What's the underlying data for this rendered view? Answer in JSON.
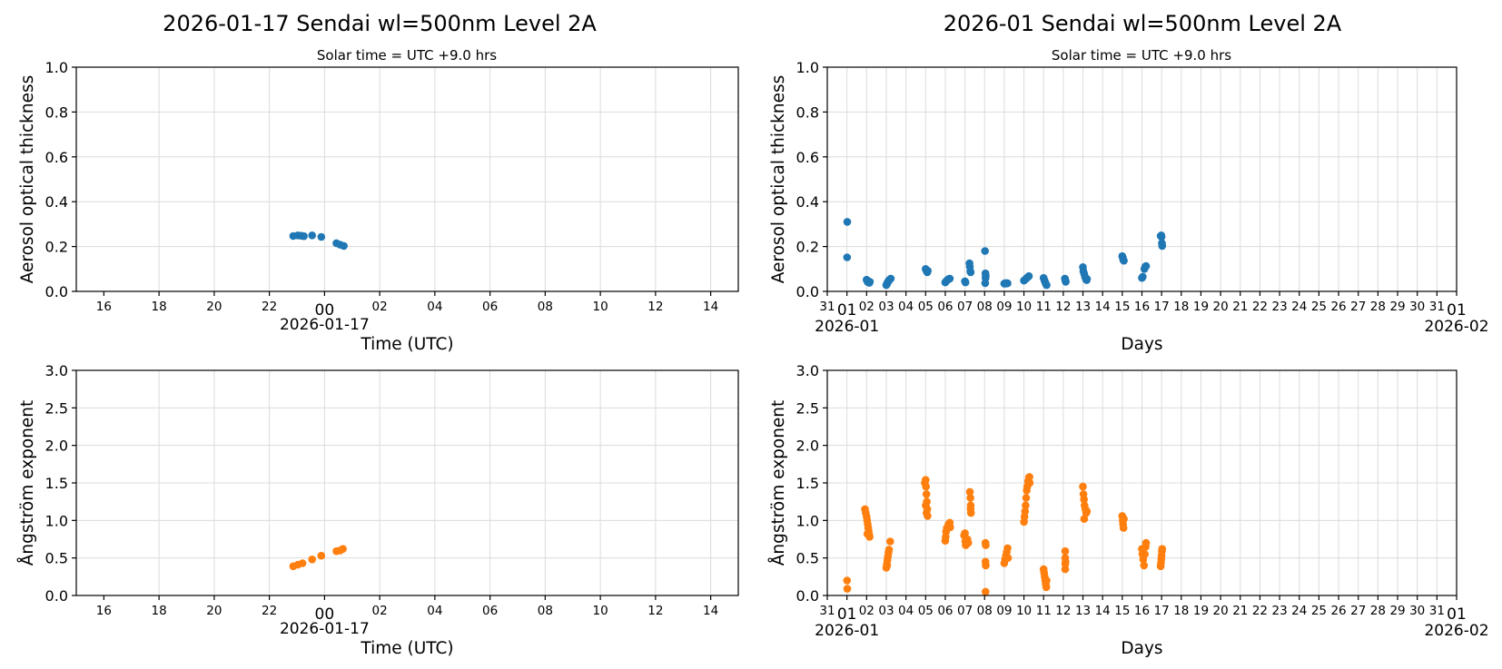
{
  "colors": {
    "aod": "#1f77b4",
    "angstrom": "#ff7f0e",
    "grid": "#dcdcdc"
  },
  "chart_data": [
    {
      "type": "scatter",
      "panel": "daily-aod",
      "title": "2026-01-17  Sendai  wl=500nm  Level 2A",
      "subtitle": "Solar time = UTC +9.0 hrs",
      "xlabel": "Time (UTC)",
      "ylabel": "Aerosol optical thickness",
      "xlim": [
        "2026-01-16T15:00",
        "2026-01-17T15:00"
      ],
      "ylim": [
        0,
        1.0
      ],
      "yticks": [
        "0.0",
        "0.2",
        "0.4",
        "0.6",
        "0.8",
        "1.0"
      ],
      "xticks": [
        "16",
        "18",
        "20",
        "22",
        "00",
        "02",
        "04",
        "06",
        "08",
        "10",
        "12",
        "14"
      ],
      "x_date_label": "2026-01-17",
      "grid": true,
      "points": [
        [
          "2026-01-16T22:52",
          0.247
        ],
        [
          "2026-01-16T23:02",
          0.25
        ],
        [
          "2026-01-16T23:09",
          0.248
        ],
        [
          "2026-01-16T23:15",
          0.246
        ],
        [
          "2026-01-16T23:33",
          0.25
        ],
        [
          "2026-01-16T23:53",
          0.243
        ],
        [
          "2026-01-17T00:26",
          0.215
        ],
        [
          "2026-01-17T00:34",
          0.208
        ],
        [
          "2026-01-17T00:42",
          0.203
        ]
      ]
    },
    {
      "type": "scatter",
      "panel": "monthly-aod",
      "title": "2026-01  Sendai  wl=500nm  Level 2A",
      "subtitle": "Solar time = UTC +9.0 hrs",
      "xlabel": "Days",
      "ylabel": "Aerosol optical thickness",
      "xlim": [
        "2025-12-31",
        "2026-02-01"
      ],
      "ylim": [
        0,
        1.0
      ],
      "yticks": [
        "0.0",
        "0.2",
        "0.4",
        "0.6",
        "0.8",
        "1.0"
      ],
      "xticks": [
        "31",
        "01",
        "02",
        "03",
        "04",
        "05",
        "06",
        "07",
        "08",
        "09",
        "10",
        "11",
        "12",
        "13",
        "14",
        "15",
        "16",
        "17",
        "18",
        "19",
        "20",
        "21",
        "22",
        "23",
        "24",
        "25",
        "26",
        "27",
        "28",
        "29",
        "30",
        "31",
        "01"
      ],
      "x_date_labels": [
        "2026-01",
        "2026-02"
      ],
      "grid": true,
      "points": [
        [
          "2026-01-01T00:20",
          0.31
        ],
        [
          "2026-01-01T00:10",
          0.152
        ],
        [
          "2026-01-02T00:00",
          0.052
        ],
        [
          "2026-01-02T00:40",
          0.048
        ],
        [
          "2026-01-02T01:20",
          0.042
        ],
        [
          "2026-01-02T02:00",
          0.045
        ],
        [
          "2026-01-02T02:40",
          0.04
        ],
        [
          "2026-01-02T03:20",
          0.038
        ],
        [
          "2026-01-02T04:00",
          0.043
        ],
        [
          "2026-01-03T00:00",
          0.028
        ],
        [
          "2026-01-03T00:40",
          0.032
        ],
        [
          "2026-01-03T01:20",
          0.038
        ],
        [
          "2026-01-03T02:00",
          0.042
        ],
        [
          "2026-01-03T03:00",
          0.048
        ],
        [
          "2026-01-03T04:00",
          0.052
        ],
        [
          "2026-01-03T05:30",
          0.057
        ],
        [
          "2026-01-05T00:00",
          0.1
        ],
        [
          "2026-01-05T00:40",
          0.095
        ],
        [
          "2026-01-05T01:20",
          0.09
        ],
        [
          "2026-01-05T02:00",
          0.085
        ],
        [
          "2026-01-05T02:40",
          0.092
        ],
        [
          "2026-01-06T00:00",
          0.04
        ],
        [
          "2026-01-06T01:00",
          0.045
        ],
        [
          "2026-01-06T02:30",
          0.05
        ],
        [
          "2026-01-06T04:00",
          0.055
        ],
        [
          "2026-01-06T05:30",
          0.057
        ],
        [
          "2026-01-07T00:00",
          0.045
        ],
        [
          "2026-01-07T00:40",
          0.04
        ],
        [
          "2026-01-07T05:30",
          0.125
        ],
        [
          "2026-01-07T06:00",
          0.11
        ],
        [
          "2026-01-07T06:30",
          0.09
        ],
        [
          "2026-01-07T07:00",
          0.085
        ],
        [
          "2026-01-08T00:30",
          0.18
        ],
        [
          "2026-01-08T01:00",
          0.08
        ],
        [
          "2026-01-08T01:20",
          0.07
        ],
        [
          "2026-01-08T01:10",
          0.06
        ],
        [
          "2026-01-08T00:40",
          0.037
        ],
        [
          "2026-01-09T00:00",
          0.035
        ],
        [
          "2026-01-09T01:00",
          0.037
        ],
        [
          "2026-01-09T02:00",
          0.035
        ],
        [
          "2026-01-09T03:00",
          0.037
        ],
        [
          "2026-01-09T04:00",
          0.036
        ],
        [
          "2026-01-10T00:00",
          0.048
        ],
        [
          "2026-01-10T01:30",
          0.053
        ],
        [
          "2026-01-10T03:00",
          0.058
        ],
        [
          "2026-01-10T04:30",
          0.063
        ],
        [
          "2026-01-10T06:00",
          0.068
        ],
        [
          "2026-01-11T00:00",
          0.06
        ],
        [
          "2026-01-11T01:00",
          0.05
        ],
        [
          "2026-01-11T02:00",
          0.04
        ],
        [
          "2026-01-11T03:00",
          0.032
        ],
        [
          "2026-01-11T03:40",
          0.028
        ],
        [
          "2026-01-12T02:00",
          0.057
        ],
        [
          "2026-01-12T02:30",
          0.05
        ],
        [
          "2026-01-12T03:00",
          0.043
        ],
        [
          "2026-01-13T00:00",
          0.108
        ],
        [
          "2026-01-13T00:30",
          0.09
        ],
        [
          "2026-01-13T01:30",
          0.078
        ],
        [
          "2026-01-13T02:30",
          0.065
        ],
        [
          "2026-01-13T03:30",
          0.055
        ],
        [
          "2026-01-13T04:30",
          0.05
        ],
        [
          "2026-01-13T05:00",
          0.055
        ],
        [
          "2026-01-15T00:00",
          0.157
        ],
        [
          "2026-01-15T00:40",
          0.15
        ],
        [
          "2026-01-15T01:20",
          0.14
        ],
        [
          "2026-01-15T02:00",
          0.137
        ],
        [
          "2026-01-16T00:00",
          0.06
        ],
        [
          "2026-01-16T01:00",
          0.065
        ],
        [
          "2026-01-16T03:00",
          0.1
        ],
        [
          "2026-01-16T04:00",
          0.11
        ],
        [
          "2026-01-16T05:00",
          0.113
        ],
        [
          "2026-01-16T22:52",
          0.247
        ],
        [
          "2026-01-16T23:33",
          0.25
        ],
        [
          "2026-01-16T23:53",
          0.243
        ],
        [
          "2026-01-17T00:26",
          0.215
        ],
        [
          "2026-01-17T00:42",
          0.203
        ]
      ]
    },
    {
      "type": "scatter",
      "panel": "daily-angstrom",
      "xlabel": "Time (UTC)",
      "ylabel": "Ångström exponent",
      "xlim": [
        "2026-01-16T15:00",
        "2026-01-17T15:00"
      ],
      "ylim": [
        0,
        3.0
      ],
      "yticks": [
        "0.0",
        "0.5",
        "1.0",
        "1.5",
        "2.0",
        "2.5",
        "3.0"
      ],
      "xticks": [
        "16",
        "18",
        "20",
        "22",
        "00",
        "02",
        "04",
        "06",
        "08",
        "10",
        "12",
        "14"
      ],
      "x_date_label": "2026-01-17",
      "grid": true,
      "points": [
        [
          "2026-01-16T22:52",
          0.39
        ],
        [
          "2026-01-16T23:02",
          0.41
        ],
        [
          "2026-01-16T23:12",
          0.43
        ],
        [
          "2026-01-16T23:33",
          0.48
        ],
        [
          "2026-01-16T23:53",
          0.53
        ],
        [
          "2026-01-17T00:26",
          0.59
        ],
        [
          "2026-01-17T00:34",
          0.6
        ],
        [
          "2026-01-17T00:40",
          0.62
        ]
      ]
    },
    {
      "type": "scatter",
      "panel": "monthly-angstrom",
      "xlabel": "Days",
      "ylabel": "Ångström exponent",
      "xlim": [
        "2025-12-31",
        "2026-02-01"
      ],
      "ylim": [
        0,
        3.0
      ],
      "yticks": [
        "0.0",
        "0.5",
        "1.0",
        "1.5",
        "2.0",
        "2.5",
        "3.0"
      ],
      "xticks": [
        "31",
        "01",
        "02",
        "03",
        "04",
        "05",
        "06",
        "07",
        "08",
        "09",
        "10",
        "11",
        "12",
        "13",
        "14",
        "15",
        "16",
        "17",
        "18",
        "19",
        "20",
        "21",
        "22",
        "23",
        "24",
        "25",
        "26",
        "27",
        "28",
        "29",
        "30",
        "31",
        "01"
      ],
      "x_date_labels": [
        "2026-01",
        "2026-02"
      ],
      "grid": true,
      "points": [
        [
          "2026-01-01T00:10",
          0.2
        ],
        [
          "2026-01-01T00:20",
          0.09
        ],
        [
          "2026-01-01T22:00",
          1.15
        ],
        [
          "2026-01-01T23:00",
          1.1
        ],
        [
          "2026-01-02T00:00",
          1.05
        ],
        [
          "2026-01-02T00:40",
          1.0
        ],
        [
          "2026-01-02T01:20",
          0.95
        ],
        [
          "2026-01-02T02:00",
          0.9
        ],
        [
          "2026-01-02T02:40",
          0.85
        ],
        [
          "2026-01-02T03:20",
          0.8
        ],
        [
          "2026-01-02T03:40",
          0.78
        ],
        [
          "2026-01-02T01:00",
          0.82
        ],
        [
          "2026-01-03T00:00",
          0.37
        ],
        [
          "2026-01-03T00:40",
          0.42
        ],
        [
          "2026-01-03T01:20",
          0.47
        ],
        [
          "2026-01-03T02:00",
          0.52
        ],
        [
          "2026-01-03T02:40",
          0.57
        ],
        [
          "2026-01-03T03:20",
          0.61
        ],
        [
          "2026-01-03T04:48",
          0.72
        ],
        [
          "2026-01-03T01:00",
          0.4
        ],
        [
          "2026-01-04T23:00",
          1.5
        ],
        [
          "2026-01-05T00:00",
          1.54
        ],
        [
          "2026-01-05T00:30",
          1.45
        ],
        [
          "2026-01-05T01:00",
          1.35
        ],
        [
          "2026-01-05T01:30",
          1.25
        ],
        [
          "2026-01-05T02:00",
          1.15
        ],
        [
          "2026-01-05T02:20",
          1.06
        ],
        [
          "2026-01-05T00:10",
          1.2
        ],
        [
          "2026-01-05T01:10",
          1.1
        ],
        [
          "2026-01-06T00:00",
          0.73
        ],
        [
          "2026-01-06T00:30",
          0.78
        ],
        [
          "2026-01-06T01:00",
          0.85
        ],
        [
          "2026-01-06T02:00",
          0.9
        ],
        [
          "2026-01-06T04:00",
          0.95
        ],
        [
          "2026-01-06T05:30",
          0.97
        ],
        [
          "2026-01-06T06:00",
          0.91
        ],
        [
          "2026-01-06T23:00",
          0.8
        ],
        [
          "2026-01-07T00:00",
          0.83
        ],
        [
          "2026-01-07T00:30",
          0.72
        ],
        [
          "2026-01-07T01:00",
          0.67
        ],
        [
          "2026-01-07T03:00",
          0.75
        ],
        [
          "2026-01-07T04:00",
          0.7
        ],
        [
          "2026-01-07T06:00",
          1.38
        ],
        [
          "2026-01-07T06:40",
          1.3
        ],
        [
          "2026-01-07T07:00",
          1.2
        ],
        [
          "2026-01-07T07:20",
          1.1
        ],
        [
          "2026-01-07T06:50",
          1.15
        ],
        [
          "2026-01-08T01:00",
          0.7
        ],
        [
          "2026-01-08T01:20",
          0.67
        ],
        [
          "2026-01-08T01:00",
          0.45
        ],
        [
          "2026-01-08T01:20",
          0.4
        ],
        [
          "2026-01-08T01:10",
          0.05
        ],
        [
          "2026-01-09T00:00",
          0.43
        ],
        [
          "2026-01-09T01:00",
          0.48
        ],
        [
          "2026-01-09T02:00",
          0.53
        ],
        [
          "2026-01-09T03:00",
          0.58
        ],
        [
          "2026-01-09T04:00",
          0.63
        ],
        [
          "2026-01-09T04:30",
          0.5
        ],
        [
          "2026-01-10T00:00",
          0.98
        ],
        [
          "2026-01-10T00:40",
          1.05
        ],
        [
          "2026-01-10T01:20",
          1.12
        ],
        [
          "2026-01-10T02:00",
          1.2
        ],
        [
          "2026-01-10T02:40",
          1.3
        ],
        [
          "2026-01-10T03:20",
          1.4
        ],
        [
          "2026-01-10T04:00",
          1.45
        ],
        [
          "2026-01-10T05:00",
          1.52
        ],
        [
          "2026-01-10T06:00",
          1.57
        ],
        [
          "2026-01-10T06:40",
          1.58
        ],
        [
          "2026-01-10T07:00",
          1.5
        ],
        [
          "2026-01-11T00:00",
          0.35
        ],
        [
          "2026-01-11T00:40",
          0.3
        ],
        [
          "2026-01-11T01:20",
          0.25
        ],
        [
          "2026-01-11T02:00",
          0.2
        ],
        [
          "2026-01-11T02:40",
          0.15
        ],
        [
          "2026-01-11T03:20",
          0.11
        ],
        [
          "2026-01-11T03:40",
          0.2
        ],
        [
          "2026-01-12T02:24",
          0.59
        ],
        [
          "2026-01-12T02:20",
          0.5
        ],
        [
          "2026-01-12T02:30",
          0.42
        ],
        [
          "2026-01-12T02:24",
          0.35
        ],
        [
          "2026-01-12T02:40",
          0.45
        ],
        [
          "2026-01-13T00:00",
          1.45
        ],
        [
          "2026-01-13T00:40",
          1.35
        ],
        [
          "2026-01-13T01:20",
          1.28
        ],
        [
          "2026-01-13T02:00",
          1.2
        ],
        [
          "2026-01-13T03:00",
          1.15
        ],
        [
          "2026-01-13T04:00",
          1.1
        ],
        [
          "2026-01-13T04:48",
          1.12
        ],
        [
          "2026-01-13T01:30",
          1.02
        ],
        [
          "2026-01-15T00:00",
          1.06
        ],
        [
          "2026-01-15T00:30",
          1.0
        ],
        [
          "2026-01-15T01:00",
          0.95
        ],
        [
          "2026-01-15T01:30",
          0.9
        ],
        [
          "2026-01-15T02:00",
          1.02
        ],
        [
          "2026-01-16T00:00",
          0.62
        ],
        [
          "2026-01-16T00:30",
          0.55
        ],
        [
          "2026-01-16T01:30",
          0.48
        ],
        [
          "2026-01-16T02:30",
          0.4
        ],
        [
          "2026-01-16T03:30",
          0.55
        ],
        [
          "2026-01-16T04:30",
          0.65
        ],
        [
          "2026-01-16T05:00",
          0.7
        ],
        [
          "2026-01-16T22:52",
          0.39
        ],
        [
          "2026-01-16T23:12",
          0.43
        ],
        [
          "2026-01-16T23:33",
          0.48
        ],
        [
          "2026-01-16T23:53",
          0.53
        ],
        [
          "2026-01-17T00:26",
          0.59
        ],
        [
          "2026-01-17T00:40",
          0.62
        ]
      ]
    }
  ]
}
